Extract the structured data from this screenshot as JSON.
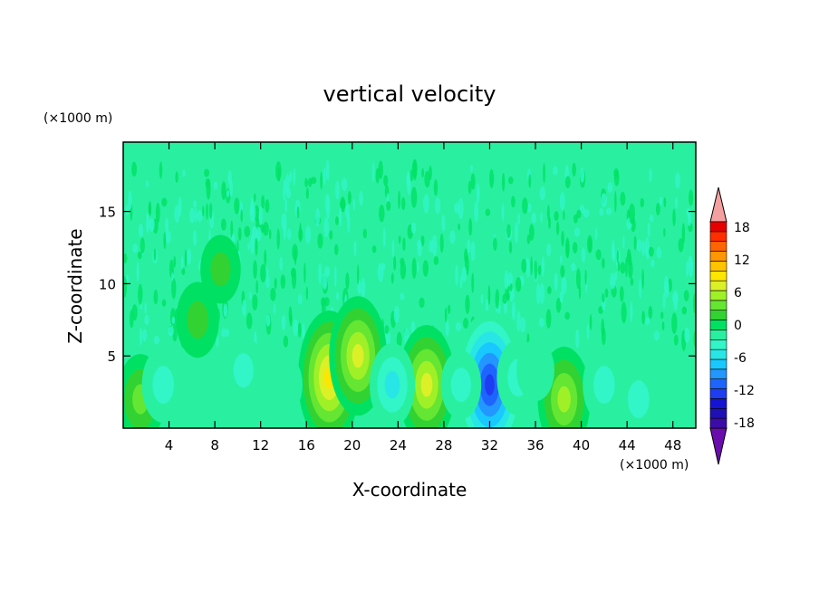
{
  "chart_data": {
    "type": "heatmap",
    "title": "vertical velocity",
    "xlabel": "X-coordinate",
    "ylabel": "Z-coordinate",
    "x_unit": "(×1000 m)",
    "y_unit": "(×1000 m)",
    "xlim": [
      0,
      50
    ],
    "ylim": [
      0,
      19.8
    ],
    "x_ticks": [
      4,
      8,
      12,
      16,
      20,
      24,
      28,
      32,
      36,
      40,
      44,
      48
    ],
    "y_ticks": [
      5,
      10,
      15
    ],
    "colorbar": {
      "min": -21,
      "max": 21,
      "step": 2,
      "tick_labels": [
        "18",
        "12",
        "6",
        "0",
        "-6",
        "-12",
        "-18"
      ],
      "tick_values": [
        18,
        12,
        6,
        0,
        -6,
        -12,
        -18
      ],
      "colors": [
        "#6a0dad",
        "#3c0ca8",
        "#1e10b4",
        "#1414d2",
        "#1e3cf0",
        "#1e64ff",
        "#2396ff",
        "#19c8ff",
        "#28e6e6",
        "#32f5c8",
        "#28f0a0",
        "#00e164",
        "#32d232",
        "#64e632",
        "#a0f028",
        "#dcf028",
        "#ffe600",
        "#ffc300",
        "#ff9600",
        "#ff6400",
        "#ff2d00",
        "#e60000",
        "#f5a0a0"
      ]
    },
    "features": [
      {
        "x": 1.5,
        "z": 2.0,
        "w": 6
      },
      {
        "x": 18.0,
        "z": 3.5,
        "w": 12
      },
      {
        "x": 20.5,
        "z": 5.0,
        "w": 10
      },
      {
        "x": 26.5,
        "z": 3.0,
        "w": 10
      },
      {
        "x": 32.0,
        "z": 3.0,
        "w": -14
      },
      {
        "x": 38.5,
        "z": 2.0,
        "w": 8
      },
      {
        "x": 3.5,
        "z": 3.0,
        "w": -4
      },
      {
        "x": 10.5,
        "z": 4.0,
        "w": -3
      },
      {
        "x": 14.0,
        "z": 3.0,
        "w": -2
      },
      {
        "x": 23.5,
        "z": 3.0,
        "w": -5
      },
      {
        "x": 29.5,
        "z": 3.0,
        "w": -3
      },
      {
        "x": 34.5,
        "z": 3.5,
        "w": -4
      },
      {
        "x": 36.0,
        "z": 4.0,
        "w": -2
      },
      {
        "x": 42.0,
        "z": 3.0,
        "w": -4
      },
      {
        "x": 45.0,
        "z": 2.0,
        "w": -4
      },
      {
        "x": 6.5,
        "z": 7.5,
        "w": 4
      },
      {
        "x": 8.5,
        "z": 11.0,
        "w": 3
      }
    ]
  }
}
